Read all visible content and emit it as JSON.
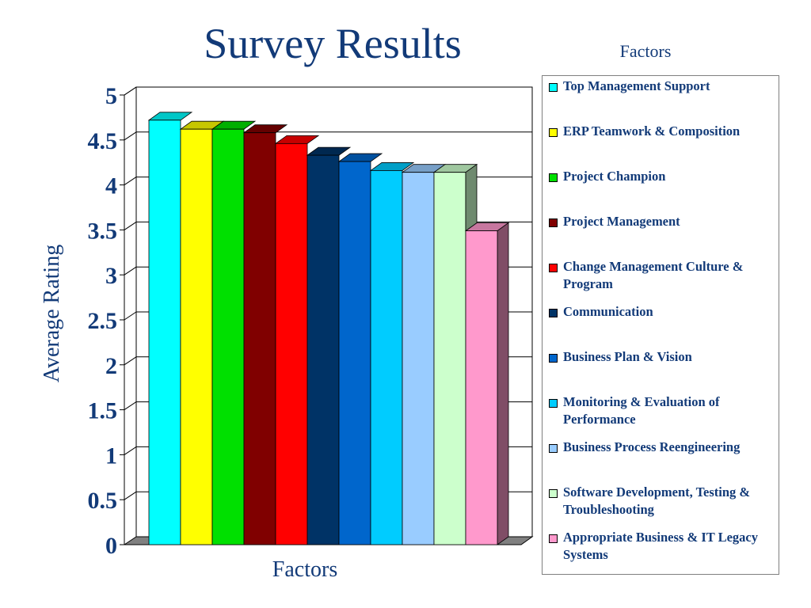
{
  "chart_data": {
    "type": "bar",
    "title": "Survey Results",
    "xlabel": "Factors",
    "ylabel": "Average Rating",
    "legend_title": "Factors",
    "legend_position": "right",
    "ylim": [
      0,
      5
    ],
    "y_ticks": [
      "0",
      "0.5",
      "1",
      "1.5",
      "2",
      "2.5",
      "3",
      "3.5",
      "4",
      "4.5",
      "5"
    ],
    "grid": true,
    "style": "3d",
    "series": [
      {
        "name": "Top Management Support",
        "value": 4.72,
        "color": "#00ffff"
      },
      {
        "name": "ERP Teamwork & Composition",
        "value": 4.62,
        "color": "#ffff00"
      },
      {
        "name": "Project Champion",
        "value": 4.62,
        "color": "#00e000"
      },
      {
        "name": "Project Management",
        "value": 4.58,
        "color": "#800000"
      },
      {
        "name": "Change Management Culture & Program",
        "value": 4.46,
        "color": "#ff0000"
      },
      {
        "name": "Communication",
        "value": 4.33,
        "color": "#003366"
      },
      {
        "name": "Business Plan & Vision",
        "value": 4.26,
        "color": "#0066cc"
      },
      {
        "name": "Monitoring & Evaluation of Performance",
        "value": 4.16,
        "color": "#00ccff"
      },
      {
        "name": "Business Process Reengineering",
        "value": 4.14,
        "color": "#99ccff"
      },
      {
        "name": "Software Development, Testing & Troubleshooting",
        "value": 4.14,
        "color": "#ccffcc"
      },
      {
        "name": "Appropriate Business & IT Legacy Systems",
        "value": 3.49,
        "color": "#ff99cc"
      }
    ]
  }
}
